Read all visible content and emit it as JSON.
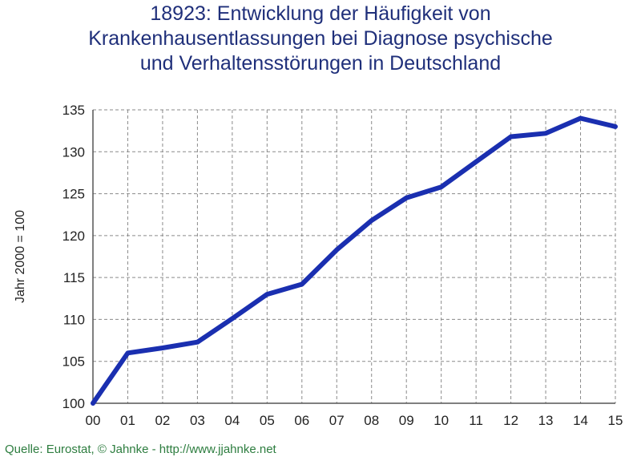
{
  "chart_data": {
    "type": "line",
    "title_lines": [
      "18923: Entwicklung der Häufigkeit von",
      "Krankenhausentlassungen bei Diagnose psychische",
      "und Verhaltensstörungen in Deutschland"
    ],
    "xlabel": "",
    "ylabel": "Jahr 2000 = 100",
    "categories": [
      "00",
      "01",
      "02",
      "03",
      "04",
      "05",
      "06",
      "07",
      "08",
      "09",
      "10",
      "11",
      "12",
      "13",
      "14",
      "15"
    ],
    "series": [
      {
        "values": [
          100,
          106,
          106.6,
          107.3,
          110.1,
          113,
          114.2,
          118.3,
          121.8,
          124.5,
          125.8,
          128.8,
          131.8,
          132.2,
          134,
          133
        ],
        "color": "#1a2fb0"
      }
    ],
    "ylim": [
      100,
      135
    ],
    "yticks": [
      100,
      105,
      110,
      115,
      120,
      125,
      130,
      135
    ],
    "grid": true
  },
  "source": "Quelle: Eurostat, © Jahnke - http://www.jjahnke.net"
}
